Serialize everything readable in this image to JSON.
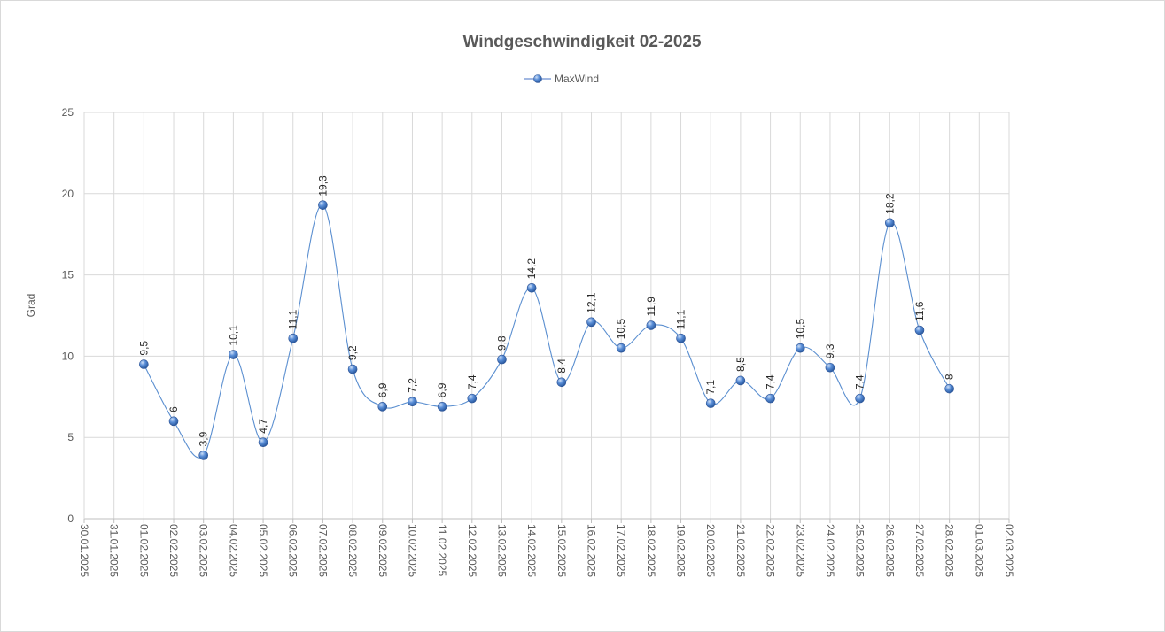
{
  "chart_data": {
    "type": "line",
    "title": "Windgeschwindigkeit  02-2025",
    "ylabel": "Grad",
    "xlabel": "",
    "ylim": [
      0,
      25
    ],
    "yticks": [
      0,
      5,
      10,
      15,
      20,
      25
    ],
    "grid": true,
    "smooth": true,
    "legend_position": "top",
    "categories": [
      "30.01.2025",
      "31.01.2025",
      "01.02.2025",
      "02.02.2025",
      "03.02.2025",
      "04.02.2025",
      "05.02.2025",
      "06.02.2025",
      "07.02.2025",
      "08.02.2025",
      "09.02.2025",
      "10.02.2025",
      "11.02.2025",
      "12.02.2025",
      "13.02.2025",
      "14.02.2025",
      "15.02.2025",
      "16.02.2025",
      "17.02.2025",
      "18.02.2025",
      "19.02.2025",
      "20.02.2025",
      "21.02.2025",
      "22.02.2025",
      "23.02.2025",
      "24.02.2025",
      "25.02.2025",
      "26.02.2025",
      "27.02.2025",
      "28.02.2025",
      "01.03.2025",
      "02.03.2025"
    ],
    "series": [
      {
        "name": "MaxWind",
        "color": "#4472c4",
        "values": [
          null,
          null,
          9.5,
          6,
          3.9,
          10.1,
          4.7,
          11.1,
          19.3,
          9.2,
          6.9,
          7.2,
          6.9,
          7.4,
          9.8,
          14.2,
          8.4,
          12.1,
          10.5,
          11.9,
          11.1,
          7.1,
          8.5,
          7.4,
          10.5,
          9.3,
          7.4,
          18.2,
          11.6,
          8,
          null,
          null
        ],
        "labels": [
          null,
          null,
          "9,5",
          "6",
          "3,9",
          "10,1",
          "4,7",
          "11,1",
          "19,3",
          "9,2",
          "6,9",
          "7,2",
          "6,9",
          "7,4",
          "9,8",
          "14,2",
          "8,4",
          "12,1",
          "10,5",
          "11,9",
          "11,1",
          "7,1",
          "8,5",
          "7,4",
          "10,5",
          "9,3",
          "7,4",
          "18,2",
          "11,6",
          "8",
          null,
          null
        ]
      }
    ]
  }
}
